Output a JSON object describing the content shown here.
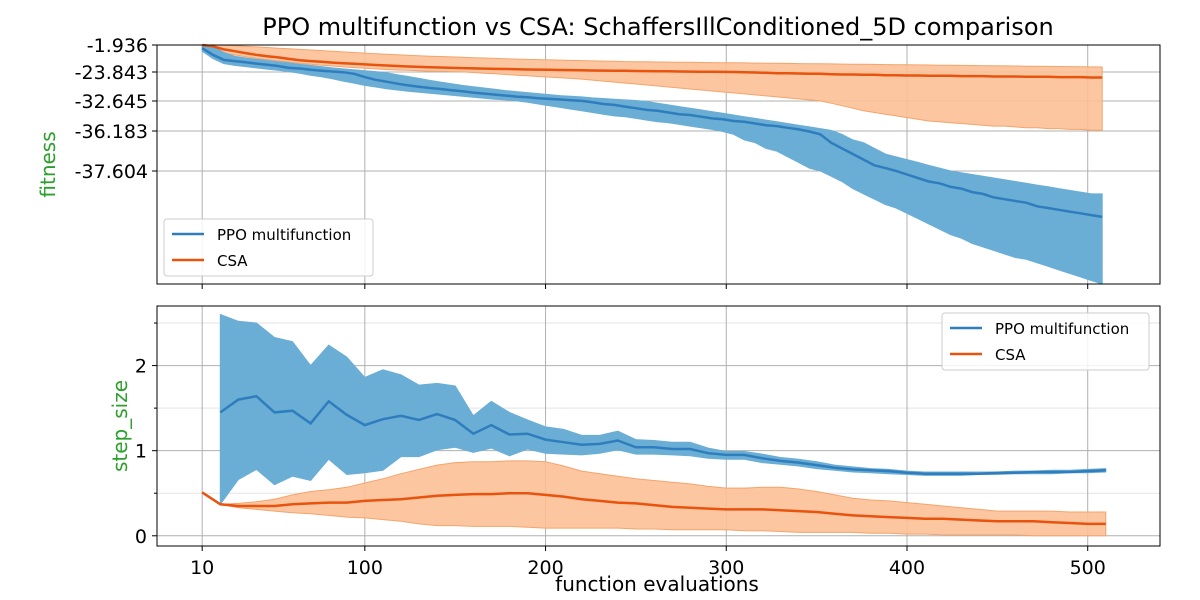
{
  "title": "PPO multifunction vs CSA: SchaffersIllConditioned_5D comparison",
  "xlabel": "function evaluations",
  "colors": {
    "ppo_line": "#2f7dbd",
    "ppo_band": "#6aaed6",
    "csa_line": "#e8530e",
    "csa_band": "#fcc097",
    "ylabel": "#2ca02c",
    "grid": "#b0b0b0"
  },
  "chart_data": [
    {
      "type": "line",
      "panel": "top",
      "ylabel": "fitness",
      "ytick_labels": [
        "-1.936",
        "-23.843",
        "-32.645",
        "-36.183",
        "-37.604"
      ],
      "ytick_values": [
        -1.936,
        -23.843,
        -32.645,
        -36.183,
        -37.604
      ],
      "xlim": [
        -15,
        540
      ],
      "xticks": [
        10,
        100,
        200,
        300,
        400,
        500
      ],
      "grid": true,
      "legend_position": "center-left",
      "x": [
        10,
        16,
        22,
        28,
        34,
        40,
        46,
        52,
        58,
        64,
        70,
        76,
        82,
        88,
        94,
        100,
        106,
        112,
        118,
        124,
        130,
        136,
        142,
        148,
        154,
        160,
        166,
        172,
        178,
        184,
        190,
        196,
        202,
        208,
        214,
        220,
        226,
        232,
        238,
        244,
        250,
        256,
        262,
        268,
        274,
        280,
        286,
        292,
        298,
        304,
        310,
        316,
        322,
        328,
        334,
        340,
        346,
        352,
        358,
        364,
        370,
        376,
        382,
        388,
        394,
        400,
        406,
        412,
        418,
        424,
        430,
        436,
        442,
        448,
        454,
        460,
        466,
        472,
        478,
        484,
        490,
        496,
        502,
        508
      ],
      "series": [
        {
          "name": "PPO multifunction",
          "mean": [
            -4.5,
            -10,
            -14,
            -15,
            -16,
            -17,
            -18,
            -19,
            -20.5,
            -21,
            -22,
            -22.8,
            -23.4,
            -23.9,
            -24.4,
            -25.4,
            -26.2,
            -26.8,
            -27.4,
            -27.9,
            -28.3,
            -28.7,
            -29,
            -29.4,
            -29.7,
            -30.1,
            -30.4,
            -30.7,
            -31,
            -31.3,
            -31.5,
            -31.8,
            -32,
            -32.2,
            -32.4,
            -32.6,
            -32.8,
            -33,
            -33.1,
            -33.3,
            -33.5,
            -33.7,
            -33.8,
            -34,
            -34.2,
            -34.3,
            -34.5,
            -34.7,
            -34.8,
            -35,
            -35.1,
            -35.3,
            -35.5,
            -35.6,
            -35.8,
            -36,
            -36.2,
            -36.3,
            -36.6,
            -36.8,
            -37,
            -37.2,
            -37.4,
            -37.5,
            -37.6,
            -37.8,
            -38,
            -38.2,
            -38.3,
            -38.5,
            -38.6,
            -38.8,
            -38.9,
            -39.1,
            -39.2,
            -39.3,
            -39.4,
            -39.6,
            -39.7,
            -39.8,
            -39.9,
            -40,
            -40.1,
            -40.2
          ],
          "lower": [
            -7,
            -13,
            -17,
            -18.5,
            -19.5,
            -20.5,
            -21.5,
            -22.5,
            -23.5,
            -24.2,
            -24.8,
            -25.3,
            -25.9,
            -26.6,
            -27.2,
            -27.9,
            -28.4,
            -28.9,
            -29.3,
            -29.7,
            -30,
            -30.3,
            -30.6,
            -30.9,
            -31.2,
            -31.5,
            -31.8,
            -32.1,
            -32.3,
            -32.6,
            -32.8,
            -33,
            -33.2,
            -33.4,
            -33.6,
            -33.8,
            -34,
            -34.2,
            -34.4,
            -34.5,
            -34.7,
            -34.9,
            -35.1,
            -35.2,
            -35.4,
            -35.6,
            -35.8,
            -36,
            -36.2,
            -36.3,
            -36.5,
            -36.6,
            -36.8,
            -36.9,
            -37.1,
            -37.3,
            -37.5,
            -37.6,
            -37.9,
            -38.2,
            -38.6,
            -38.9,
            -39.2,
            -39.5,
            -39.7,
            -40,
            -40.3,
            -40.6,
            -40.9,
            -41.2,
            -41.4,
            -41.7,
            -41.9,
            -42.1,
            -42.3,
            -42.5,
            -42.6,
            -42.8,
            -43,
            -43.2,
            -43.4,
            -43.6,
            -43.8,
            -44
          ],
          "upper": [
            -1.936,
            -3,
            -8,
            -11,
            -12.5,
            -13.5,
            -14.5,
            -15.5,
            -16.5,
            -17.5,
            -18.5,
            -19.5,
            -20.5,
            -21.3,
            -22,
            -22.8,
            -23.5,
            -24.1,
            -24.7,
            -25.2,
            -25.8,
            -26.4,
            -26.9,
            -27.4,
            -27.9,
            -28.3,
            -28.7,
            -29.1,
            -29.5,
            -29.8,
            -30.1,
            -30.4,
            -30.7,
            -31,
            -31.2,
            -31.4,
            -31.7,
            -31.9,
            -32.1,
            -32.3,
            -32.5,
            -32.7,
            -32.9,
            -33.1,
            -33.3,
            -33.5,
            -33.7,
            -33.9,
            -34.1,
            -34.3,
            -34.5,
            -34.7,
            -34.9,
            -35.1,
            -35.3,
            -35.5,
            -35.7,
            -35.9,
            -36.1,
            -36.3,
            -36.5,
            -36.6,
            -36.8,
            -37,
            -37.1,
            -37.2,
            -37.3,
            -37.4,
            -37.5,
            -37.6,
            -37.7,
            -37.8,
            -37.9,
            -38,
            -38.1,
            -38.2,
            -38.3,
            -38.4,
            -38.5,
            -38.6,
            -38.7,
            -38.8,
            -38.9,
            -38.9
          ]
        },
        {
          "name": "CSA",
          "mean": [
            -1.936,
            -3,
            -5.5,
            -7,
            -8.5,
            -10,
            -11,
            -12,
            -13.2,
            -14.3,
            -15,
            -15.6,
            -16.2,
            -16.8,
            -17.2,
            -17.7,
            -18.2,
            -18.6,
            -19,
            -19.4,
            -19.7,
            -20,
            -20.2,
            -20.5,
            -20.7,
            -20.9,
            -21.1,
            -21.3,
            -21.4,
            -21.6,
            -21.8,
            -21.9,
            -22,
            -22.2,
            -22.3,
            -22.4,
            -22.6,
            -22.7,
            -22.8,
            -22.9,
            -23,
            -23.1,
            -23.2,
            -23.3,
            -23.4,
            -23.5,
            -23.6,
            -23.7,
            -23.8,
            -23.843,
            -23.9,
            -24,
            -24.1,
            -24.2,
            -24.2,
            -24.3,
            -24.4,
            -24.4,
            -24.5,
            -24.6,
            -24.6,
            -24.7,
            -24.7,
            -24.8,
            -24.8,
            -24.9,
            -24.9,
            -25,
            -25,
            -25,
            -25.1,
            -25.1,
            -25.1,
            -25.2,
            -25.2,
            -25.2,
            -25.3,
            -25.3,
            -25.3,
            -25.4,
            -25.4,
            -25.4,
            -25.5,
            -25.5
          ],
          "lower": [
            -5,
            -6.5,
            -8.5,
            -10,
            -11.5,
            -12.8,
            -13.8,
            -14.8,
            -15.8,
            -16.8,
            -17.6,
            -18.3,
            -19,
            -19.7,
            -20.3,
            -20.8,
            -21.3,
            -21.8,
            -22.2,
            -22.5,
            -22.8,
            -23.1,
            -23.3,
            -23.6,
            -23.8,
            -24,
            -24.2,
            -24.4,
            -24.6,
            -24.8,
            -25,
            -25.2,
            -25.4,
            -25.6,
            -25.8,
            -26,
            -26.3,
            -26.6,
            -26.9,
            -27.2,
            -27.5,
            -27.8,
            -28.1,
            -28.4,
            -28.7,
            -29,
            -29.3,
            -29.6,
            -29.9,
            -30.2,
            -30.5,
            -30.8,
            -31.1,
            -31.4,
            -31.7,
            -32,
            -32.3,
            -32.6,
            -32.9,
            -33.2,
            -33.5,
            -33.8,
            -34,
            -34.2,
            -34.4,
            -34.6,
            -34.8,
            -35,
            -35.1,
            -35.2,
            -35.3,
            -35.4,
            -35.5,
            -35.6,
            -35.6,
            -35.7,
            -35.8,
            -35.8,
            -35.9,
            -35.9,
            -36,
            -36,
            -36.1,
            -36.1
          ],
          "upper": [
            -1.936,
            -1.936,
            -2,
            -2.5,
            -3,
            -3.5,
            -4,
            -4.5,
            -5,
            -5.5,
            -6,
            -6.5,
            -7,
            -7.5,
            -8,
            -8.5,
            -9,
            -9.4,
            -9.8,
            -10.2,
            -10.6,
            -11,
            -11.3,
            -11.6,
            -11.9,
            -12.2,
            -12.5,
            -12.8,
            -13.1,
            -13.4,
            -13.6,
            -13.8,
            -14,
            -14.2,
            -14.4,
            -14.6,
            -14.8,
            -15,
            -15.2,
            -15.4,
            -15.5,
            -15.6,
            -15.7,
            -15.8,
            -15.9,
            -16,
            -16.1,
            -16.2,
            -16.3,
            -16.4,
            -16.5,
            -16.6,
            -16.7,
            -16.8,
            -16.9,
            -17,
            -17.1,
            -17.2,
            -17.3,
            -17.4,
            -17.5,
            -17.6,
            -17.7,
            -17.8,
            -17.9,
            -18,
            -18.1,
            -18.2,
            -18.3,
            -18.4,
            -18.5,
            -18.6,
            -18.7,
            -18.8,
            -18.9,
            -19,
            -19.1,
            -19.2,
            -19.3,
            -19.4,
            -19.5,
            -19.6,
            -19.7,
            -19.8
          ]
        }
      ]
    },
    {
      "type": "line",
      "panel": "bottom",
      "ylabel": "step_size",
      "ylim": [
        -0.12,
        2.7
      ],
      "yticks": [
        0,
        1,
        2
      ],
      "xlim": [
        -15,
        540
      ],
      "xticks": [
        10,
        100,
        200,
        300,
        400,
        500
      ],
      "xtick_labels": [
        "10",
        "100",
        "200",
        "300",
        "400",
        "500"
      ],
      "grid": true,
      "legend_position": "top-right",
      "series": [
        {
          "name": "PPO multifunction",
          "x": [
            20,
            30,
            40,
            50,
            60,
            70,
            80,
            90,
            100,
            110,
            120,
            130,
            140,
            150,
            160,
            170,
            180,
            190,
            200,
            210,
            220,
            230,
            240,
            250,
            260,
            270,
            280,
            290,
            300,
            310,
            320,
            330,
            340,
            350,
            360,
            370,
            380,
            390,
            400,
            410,
            420,
            430,
            440,
            450,
            460,
            470,
            480,
            490,
            500,
            510
          ],
          "mean": [
            1.45,
            1.6,
            1.64,
            1.45,
            1.47,
            1.32,
            1.58,
            1.42,
            1.3,
            1.37,
            1.41,
            1.36,
            1.43,
            1.36,
            1.2,
            1.3,
            1.19,
            1.2,
            1.13,
            1.1,
            1.07,
            1.08,
            1.12,
            1.04,
            1.04,
            1.02,
            1.02,
            0.97,
            0.95,
            0.95,
            0.91,
            0.88,
            0.86,
            0.83,
            0.8,
            0.78,
            0.77,
            0.76,
            0.74,
            0.73,
            0.73,
            0.73,
            0.73,
            0.74,
            0.74,
            0.75,
            0.75,
            0.75,
            0.76,
            0.77
          ],
          "lower": [
            0.37,
            0.66,
            0.78,
            0.6,
            0.7,
            0.65,
            0.9,
            0.72,
            0.74,
            0.77,
            0.93,
            0.93,
            1.01,
            1.04,
            0.98,
            1.03,
            0.94,
            1.02,
            0.97,
            0.96,
            0.95,
            0.97,
            1.01,
            0.96,
            0.96,
            0.95,
            0.94,
            0.91,
            0.9,
            0.9,
            0.86,
            0.84,
            0.82,
            0.79,
            0.77,
            0.75,
            0.74,
            0.73,
            0.72,
            0.71,
            0.71,
            0.71,
            0.72,
            0.72,
            0.73,
            0.73,
            0.73,
            0.74,
            0.74,
            0.75
          ],
          "upper": [
            2.6,
            2.52,
            2.5,
            2.33,
            2.28,
            2.0,
            2.24,
            2.1,
            1.86,
            1.95,
            1.89,
            1.77,
            1.79,
            1.76,
            1.41,
            1.58,
            1.45,
            1.36,
            1.28,
            1.25,
            1.18,
            1.18,
            1.23,
            1.13,
            1.12,
            1.1,
            1.1,
            1.03,
            0.99,
            0.99,
            0.96,
            0.92,
            0.9,
            0.87,
            0.83,
            0.81,
            0.79,
            0.78,
            0.76,
            0.75,
            0.75,
            0.75,
            0.75,
            0.75,
            0.76,
            0.76,
            0.77,
            0.77,
            0.78,
            0.79
          ]
        },
        {
          "name": "CSA",
          "x": [
            10,
            20,
            30,
            40,
            50,
            60,
            70,
            80,
            90,
            100,
            110,
            120,
            130,
            140,
            150,
            160,
            170,
            180,
            190,
            200,
            210,
            220,
            230,
            240,
            250,
            260,
            270,
            280,
            290,
            300,
            310,
            320,
            330,
            340,
            350,
            360,
            370,
            380,
            390,
            400,
            410,
            420,
            430,
            440,
            450,
            460,
            470,
            480,
            490,
            500,
            510
          ],
          "mean": [
            0.51,
            0.37,
            0.35,
            0.35,
            0.35,
            0.37,
            0.38,
            0.39,
            0.39,
            0.41,
            0.42,
            0.43,
            0.45,
            0.47,
            0.48,
            0.49,
            0.49,
            0.5,
            0.5,
            0.48,
            0.46,
            0.43,
            0.41,
            0.39,
            0.38,
            0.36,
            0.34,
            0.33,
            0.32,
            0.31,
            0.31,
            0.31,
            0.3,
            0.29,
            0.28,
            0.26,
            0.24,
            0.23,
            0.22,
            0.21,
            0.2,
            0.2,
            0.19,
            0.18,
            0.17,
            0.17,
            0.17,
            0.16,
            0.15,
            0.14,
            0.14
          ],
          "lower": [
            0.51,
            0.37,
            0.33,
            0.31,
            0.29,
            0.27,
            0.26,
            0.24,
            0.22,
            0.21,
            0.19,
            0.17,
            0.14,
            0.12,
            0.12,
            0.11,
            0.11,
            0.11,
            0.1,
            0.09,
            0.09,
            0.09,
            0.09,
            0.09,
            0.08,
            0.08,
            0.07,
            0.07,
            0.07,
            0.07,
            0.06,
            0.06,
            0.05,
            0.04,
            0.04,
            0.04,
            0.04,
            0.03,
            0.03,
            0.02,
            0.02,
            0.01,
            0.01,
            0.01,
            0.01,
            0.01,
            0.0,
            0.0,
            0.0,
            0.0,
            0.0
          ],
          "upper": [
            0.51,
            0.37,
            0.38,
            0.4,
            0.43,
            0.48,
            0.52,
            0.54,
            0.57,
            0.62,
            0.67,
            0.73,
            0.78,
            0.83,
            0.86,
            0.87,
            0.87,
            0.88,
            0.88,
            0.87,
            0.82,
            0.76,
            0.73,
            0.7,
            0.67,
            0.65,
            0.63,
            0.61,
            0.58,
            0.56,
            0.56,
            0.57,
            0.57,
            0.55,
            0.52,
            0.48,
            0.44,
            0.42,
            0.41,
            0.39,
            0.37,
            0.35,
            0.33,
            0.31,
            0.29,
            0.29,
            0.29,
            0.29,
            0.28,
            0.28,
            0.28
          ]
        }
      ]
    }
  ]
}
